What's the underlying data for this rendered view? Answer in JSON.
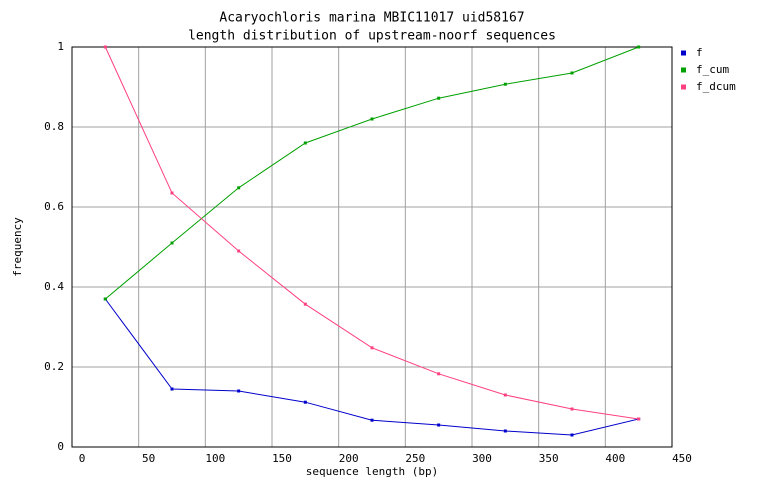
{
  "chart_data": {
    "type": "line",
    "title": "Acaryochloris marina MBIC11017 uid58167",
    "subtitle": "length distribution of upstream-noorf sequences",
    "x_label": "sequence length (bp)",
    "y_label": "frequency",
    "x": [
      25,
      75,
      125,
      175,
      225,
      275,
      325,
      375,
      425
    ],
    "series": [
      {
        "name": "f",
        "color": "#0000cc",
        "values": [
          0.37,
          0.145,
          0.14,
          0.112,
          0.067,
          0.055,
          0.04,
          0.03,
          0.07
        ]
      },
      {
        "name": "f_cum",
        "color": "#00a000",
        "values": [
          0.37,
          0.51,
          0.648,
          0.76,
          0.82,
          0.872,
          0.907,
          0.935,
          1
        ]
      },
      {
        "name": "f_dcum",
        "color": "#ff4080",
        "values": [
          1,
          0.635,
          0.49,
          0.357,
          0.248,
          0.183,
          0.13,
          0.095,
          0.07
        ]
      }
    ],
    "xlim": [
      0,
      450
    ],
    "xticks": [
      0,
      50,
      100,
      150,
      200,
      250,
      300,
      350,
      400,
      450
    ],
    "ylim": [
      0,
      1
    ],
    "yticks": [
      0,
      0.2,
      0.4,
      0.6,
      0.8,
      1
    ],
    "grid": true,
    "legend": "right"
  }
}
